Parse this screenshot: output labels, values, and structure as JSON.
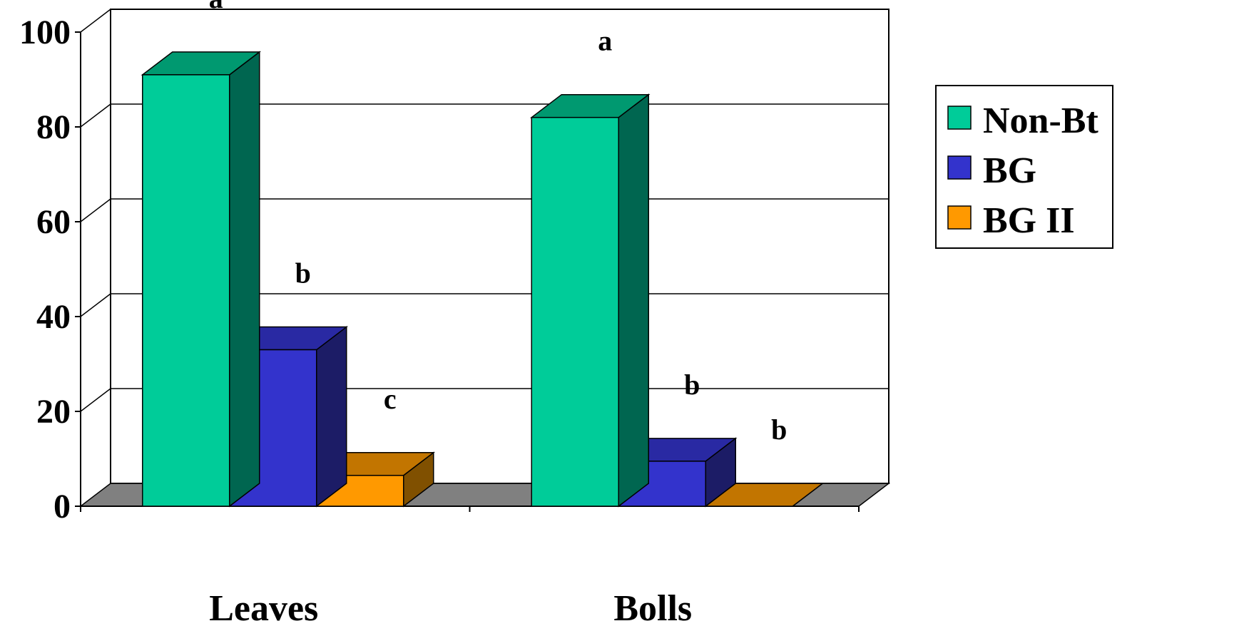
{
  "chart_data": {
    "type": "bar",
    "title": "",
    "xlabel": "",
    "ylabel": "",
    "ylim": [
      0,
      100
    ],
    "yticks": [
      0,
      20,
      40,
      60,
      80,
      100
    ],
    "grid": true,
    "three_d": true,
    "legend_position": "right",
    "categories": [
      "Leaves",
      "Bolls"
    ],
    "series": [
      {
        "name": "Non-Bt",
        "values": [
          91,
          82
        ],
        "color": "#00CC99",
        "side_color": "#006650",
        "top_color": "#009970",
        "letters": [
          "a",
          "a"
        ]
      },
      {
        "name": "BG",
        "values": [
          33,
          9.5
        ],
        "color": "#3333CC",
        "side_color": "#1C1C66",
        "top_color": "#2929A3",
        "letters": [
          "b",
          "b"
        ]
      },
      {
        "name": "BG II",
        "values": [
          6.5,
          0
        ],
        "color": "#FF9900",
        "side_color": "#805000",
        "top_color": "#C27500",
        "letters": [
          "c",
          "b"
        ]
      }
    ]
  }
}
